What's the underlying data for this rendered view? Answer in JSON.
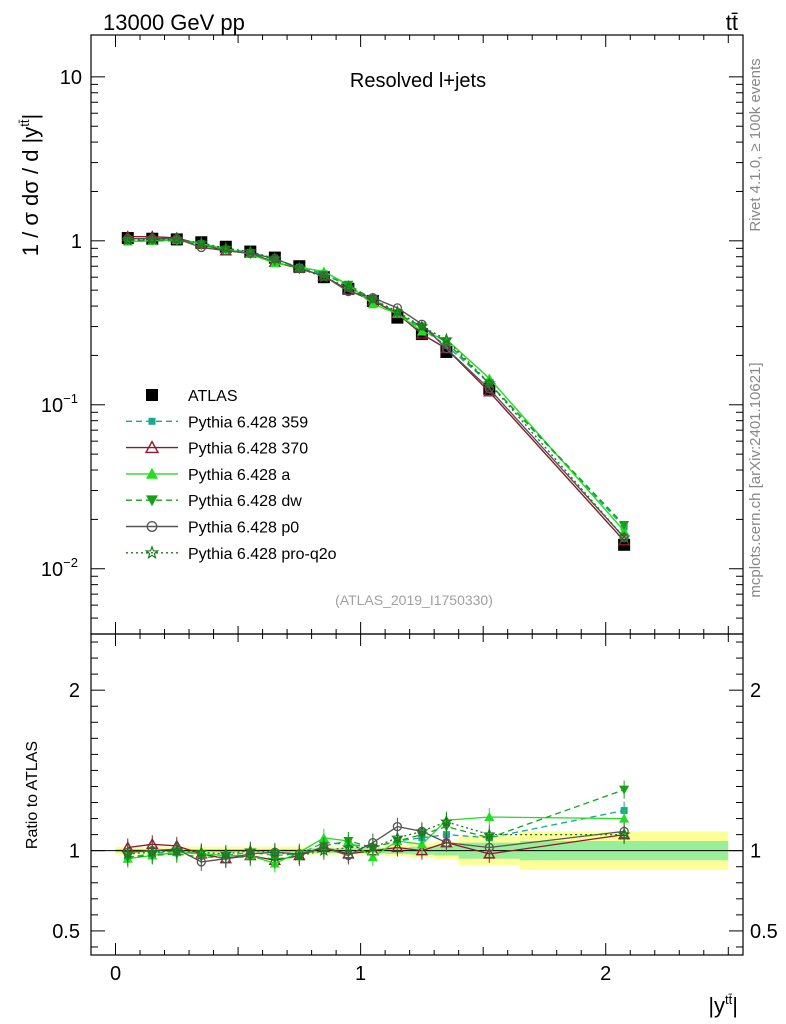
{
  "header": {
    "energy": "13000 GeV pp",
    "process": "tt̄",
    "ylabel": "1 / σ dσ / d |y",
    "ylabel_sup": "tt̄",
    "ylabel_end": "|",
    "xlabel": "|y",
    "xlabel_sup": "tt̄",
    "xlabel_end": "|",
    "ratio_ylabel": "Ratio to ATLAS",
    "side_top": "Rivet 4.1.0, ≥ 100k events",
    "side_bottom": "mcplots.cern.ch [arXiv:2401.10621]",
    "analysis_id": "(ATLAS_2019_I1750330)",
    "region": "Resolved l+jets"
  },
  "colors": {
    "data": "#000000",
    "p359": "#1aa890",
    "p370": "#8b1a2e",
    "pa": "#22dd22",
    "pdw": "#18a018",
    "pp0": "#555555",
    "ppro": "#1a7a1a",
    "band_syst": "#ffff99",
    "band_stat": "#99ee99"
  },
  "chart_data": {
    "type": "line",
    "title": "Resolved l+jets",
    "xlabel": "|y^{tt̄}|",
    "ylabel": "1 / σ dσ / d |y^{tt̄}|",
    "xlim": [
      -0.1,
      2.56
    ],
    "ylim": [
      0.004,
      18
    ],
    "yscale": "log",
    "ratio_ylim": [
      0.35,
      2.35
    ],
    "x": [
      0.05,
      0.15,
      0.25,
      0.35,
      0.45,
      0.55,
      0.65,
      0.75,
      0.85,
      0.95,
      1.05,
      1.15,
      1.25,
      1.35,
      1.525,
      2.075
    ],
    "bin_edges": [
      0.0,
      0.1,
      0.2,
      0.3,
      0.4,
      0.5,
      0.6,
      0.7,
      0.8,
      0.9,
      1.0,
      1.1,
      1.2,
      1.3,
      1.4,
      1.65,
      2.5
    ],
    "x_ticks": [
      {
        "value": 0,
        "label": "0"
      },
      {
        "value": 1,
        "label": "1"
      },
      {
        "value": 2,
        "label": "2"
      }
    ],
    "y_ticks": [
      {
        "value": 10,
        "label": "10",
        "sup": ""
      },
      {
        "value": 1,
        "label": "1",
        "sup": ""
      },
      {
        "value": 0.1,
        "label": "10",
        "sup": "−1"
      },
      {
        "value": 0.01,
        "label": "10",
        "sup": "−2"
      }
    ],
    "ratio_ticks": [
      {
        "value": 2,
        "label": "2"
      },
      {
        "value": 1,
        "label": "1"
      },
      {
        "value": 0.5,
        "label": "0.5"
      }
    ],
    "ratio_band_syst": [
      0.975,
      0.975,
      0.975,
      0.975,
      0.975,
      0.975,
      0.975,
      0.975,
      0.975,
      0.975,
      0.975,
      0.965,
      0.955,
      0.945,
      0.91,
      0.88
    ],
    "ratio_band_syst_hi": [
      1.025,
      1.025,
      1.025,
      1.025,
      1.025,
      1.025,
      1.025,
      1.025,
      1.025,
      1.025,
      1.025,
      1.035,
      1.045,
      1.055,
      1.09,
      1.12
    ],
    "ratio_band_stat": [
      0.99,
      0.99,
      0.99,
      0.99,
      0.99,
      0.99,
      0.99,
      0.99,
      0.985,
      0.985,
      0.985,
      0.98,
      0.975,
      0.97,
      0.95,
      0.94
    ],
    "ratio_band_stat_hi": [
      1.01,
      1.01,
      1.01,
      1.01,
      1.01,
      1.01,
      1.01,
      1.01,
      1.015,
      1.015,
      1.015,
      1.02,
      1.025,
      1.03,
      1.05,
      1.06
    ],
    "series": [
      {
        "name": "ATLAS",
        "key": "data",
        "marker": "square",
        "line": "none",
        "values": [
          1.04,
          1.03,
          1.02,
          0.98,
          0.92,
          0.86,
          0.79,
          0.7,
          0.6,
          0.51,
          0.43,
          0.34,
          0.27,
          0.21,
          0.125,
          0.014
        ],
        "ratio": [
          1,
          1,
          1,
          1,
          1,
          1,
          1,
          1,
          1,
          1,
          1,
          1,
          1,
          1,
          1,
          1
        ]
      },
      {
        "name": "Pythia 6.428 359",
        "key": "p359",
        "marker": "smallsquare",
        "line": "dashed",
        "values": [
          1.0,
          1.01,
          1.02,
          0.96,
          0.89,
          0.85,
          0.77,
          0.69,
          0.63,
          0.53,
          0.44,
          0.36,
          0.29,
          0.23,
          0.135,
          0.018
        ],
        "ratio": [
          0.96,
          0.98,
          1.0,
          0.98,
          0.97,
          0.99,
          0.97,
          0.98,
          1.05,
          1.04,
          1.02,
          1.06,
          1.08,
          1.1,
          1.08,
          1.25
        ]
      },
      {
        "name": "Pythia 6.428 370",
        "key": "p370",
        "marker": "triangle-open",
        "line": "solid",
        "values": [
          1.06,
          1.06,
          1.04,
          0.95,
          0.87,
          0.84,
          0.74,
          0.68,
          0.61,
          0.5,
          0.43,
          0.36,
          0.27,
          0.22,
          0.12,
          0.0148
        ],
        "ratio": [
          1.02,
          1.04,
          1.03,
          0.98,
          0.95,
          0.97,
          0.94,
          0.97,
          1.02,
          0.98,
          1.0,
          1.02,
          1.0,
          1.05,
          0.98,
          1.1
        ]
      },
      {
        "name": "Pythia 6.428 a",
        "key": "pa",
        "marker": "triangle",
        "line": "solid",
        "values": [
          0.99,
          1.0,
          1.01,
          0.96,
          0.89,
          0.83,
          0.73,
          0.69,
          0.65,
          0.54,
          0.41,
          0.36,
          0.28,
          0.25,
          0.145,
          0.017
        ],
        "ratio": [
          0.95,
          0.97,
          0.99,
          0.98,
          0.97,
          0.97,
          0.92,
          0.99,
          1.08,
          1.06,
          0.96,
          1.06,
          1.04,
          1.19,
          1.21,
          1.2
        ]
      },
      {
        "name": "Pythia 6.428 dw",
        "key": "pdw",
        "marker": "triangle-down",
        "line": "dashed",
        "values": [
          1.0,
          1.0,
          1.0,
          0.94,
          0.88,
          0.83,
          0.75,
          0.67,
          0.62,
          0.54,
          0.44,
          0.36,
          0.3,
          0.24,
          0.135,
          0.0185
        ],
        "ratio": [
          0.96,
          0.97,
          0.98,
          0.96,
          0.96,
          0.96,
          0.95,
          0.96,
          1.03,
          1.06,
          1.02,
          1.06,
          1.1,
          1.15,
          1.08,
          1.38
        ]
      },
      {
        "name": "Pythia 6.428 p0",
        "key": "pp0",
        "marker": "circle-open",
        "line": "solid",
        "values": [
          1.03,
          1.03,
          1.03,
          0.91,
          0.87,
          0.84,
          0.78,
          0.68,
          0.61,
          0.49,
          0.45,
          0.39,
          0.31,
          0.22,
          0.125,
          0.0155
        ],
        "ratio": [
          0.99,
          1.0,
          1.01,
          0.93,
          0.95,
          0.98,
          0.99,
          0.98,
          1.02,
          0.97,
          1.05,
          1.15,
          1.12,
          1.05,
          1.02,
          1.12
        ]
      },
      {
        "name": "Pythia 6.428 pro-q2o",
        "key": "ppro",
        "marker": "star",
        "line": "dotted",
        "values": [
          1.01,
          1.02,
          1.02,
          0.97,
          0.9,
          0.86,
          0.78,
          0.68,
          0.6,
          0.52,
          0.44,
          0.37,
          0.3,
          0.25,
          0.135,
          0.0155
        ],
        "ratio": [
          0.98,
          0.99,
          1.0,
          0.99,
          0.98,
          1.0,
          0.99,
          0.97,
          1.0,
          1.02,
          1.02,
          1.08,
          1.12,
          1.18,
          1.1,
          1.1
        ]
      }
    ]
  }
}
